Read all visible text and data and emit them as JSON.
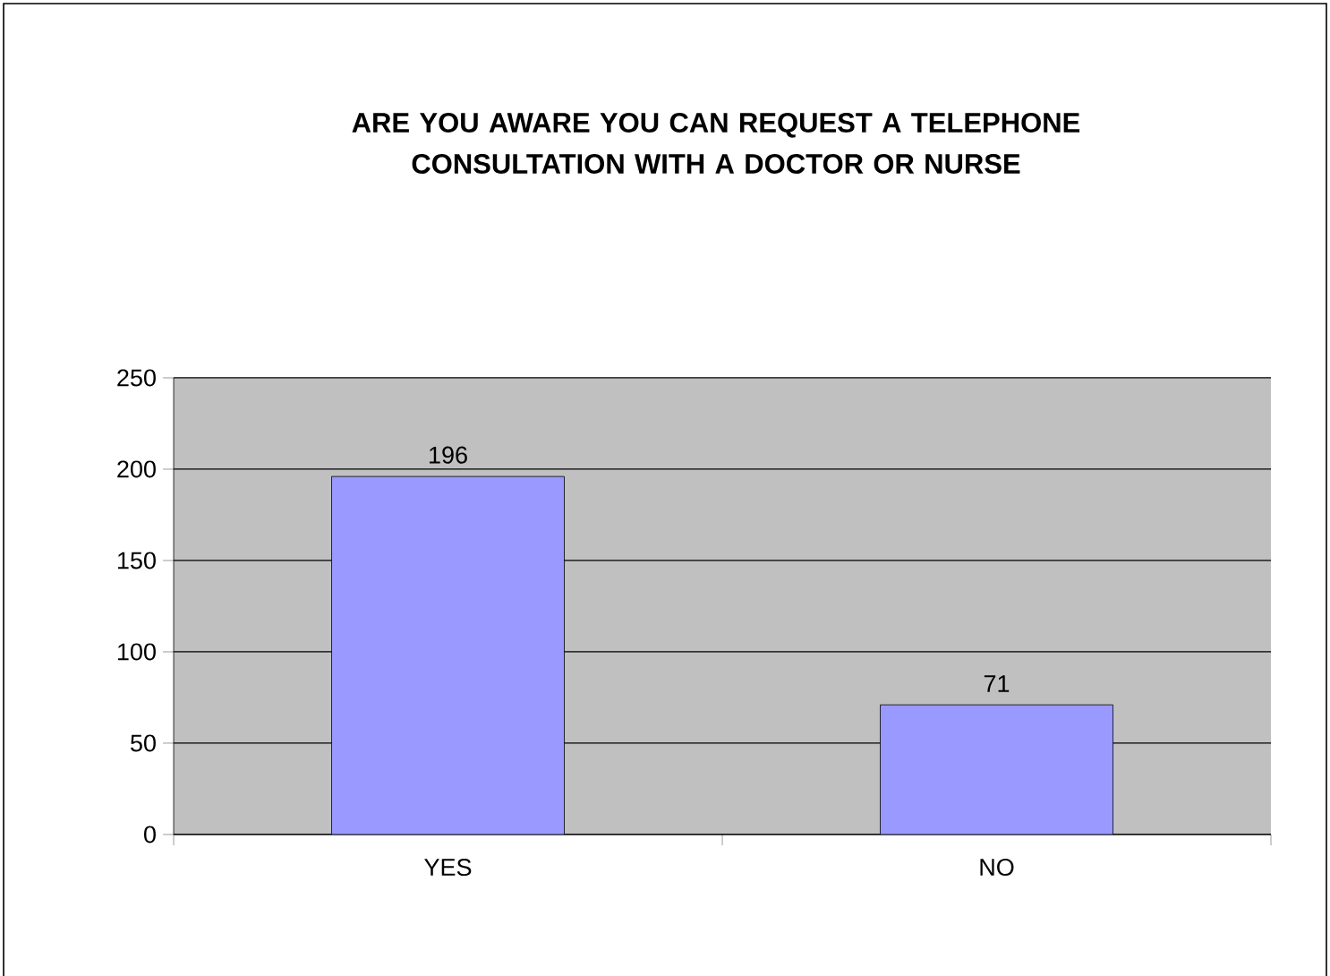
{
  "chart_data": {
    "type": "bar",
    "title": "ARE YOU AWARE YOU CAN REQUEST A TELEPHONE CONSULTATION WITH A DOCTOR OR NURSE",
    "categories": [
      "YES",
      "NO"
    ],
    "values": [
      196,
      71
    ],
    "color": "#9999ff",
    "ylim": [
      0,
      250
    ],
    "yticks": [
      0,
      50,
      100,
      150,
      200,
      250
    ],
    "grid": "y",
    "data_labels": true
  }
}
